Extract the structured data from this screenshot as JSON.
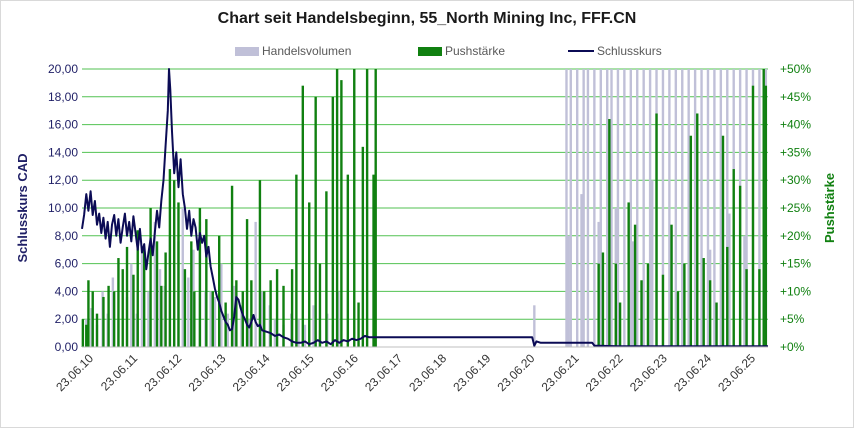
{
  "chart_data": {
    "type": "bar+line",
    "title": "Chart seit Handelsbeginn, 55_North Mining Inc, FFF.CN",
    "ylabel_left": "Schlusskurs CAD",
    "ylabel_right": "Pushstärke",
    "ylim_left": [
      0,
      20
    ],
    "ylim_right": [
      0,
      50
    ],
    "yticks_left": [
      "0,00",
      "2,00",
      "4,00",
      "6,00",
      "8,00",
      "10,00",
      "12,00",
      "14,00",
      "16,00",
      "18,00",
      "20,00"
    ],
    "yticks_right": [
      "+0%",
      "+5%",
      "+10%",
      "+15%",
      "+20%",
      "+25%",
      "+30%",
      "+35%",
      "+40%",
      "+45%",
      "+50%"
    ],
    "xticks": [
      "23.06.10",
      "23.06.11",
      "23.06.12",
      "23.06.13",
      "23.06.14",
      "23.06.15",
      "23.06.16",
      "23.06.17",
      "23.06.18",
      "23.06.19",
      "23.06.20",
      "23.06.21",
      "23.06.22",
      "23.06.23",
      "23.06.24",
      "23.06.25"
    ],
    "grid": true,
    "legend_position": "top",
    "series": [
      {
        "name": "Handelsvolumen",
        "kind": "bar",
        "axis": "none",
        "color": "#c0c0d8",
        "points": [
          [
            0.1,
            10
          ],
          [
            0.22,
            14
          ],
          [
            0.35,
            8
          ],
          [
            0.48,
            20
          ],
          [
            0.6,
            12
          ],
          [
            0.72,
            25
          ],
          [
            0.85,
            10
          ],
          [
            1.05,
            18
          ],
          [
            1.15,
            30
          ],
          [
            1.28,
            12
          ],
          [
            1.4,
            35
          ],
          [
            1.55,
            20
          ],
          [
            1.7,
            45
          ],
          [
            1.82,
            28
          ],
          [
            1.93,
            22
          ],
          [
            2.05,
            40
          ],
          [
            2.15,
            60
          ],
          [
            2.25,
            38
          ],
          [
            2.35,
            50
          ],
          [
            2.48,
            25
          ],
          [
            2.6,
            35
          ],
          [
            2.75,
            45
          ],
          [
            2.88,
            20
          ],
          [
            3.0,
            20
          ],
          [
            3.1,
            18
          ],
          [
            3.25,
            30
          ],
          [
            3.4,
            12
          ],
          [
            3.55,
            22
          ],
          [
            3.72,
            15
          ],
          [
            3.9,
            10
          ],
          [
            4.05,
            45
          ],
          [
            4.2,
            20
          ],
          [
            4.38,
            15
          ],
          [
            4.5,
            10
          ],
          [
            4.7,
            8
          ],
          [
            4.88,
            12
          ],
          [
            5.05,
            10
          ],
          [
            5.2,
            8
          ],
          [
            5.4,
            15
          ],
          [
            5.55,
            6
          ],
          [
            5.72,
            12
          ],
          [
            5.85,
            8
          ],
          [
            5.98,
            20
          ],
          [
            10.55,
            15
          ],
          [
            11.3,
            100
          ],
          [
            11.4,
            100
          ],
          [
            11.55,
            100
          ],
          [
            11.7,
            100
          ],
          [
            11.8,
            100
          ],
          [
            11.95,
            100
          ],
          [
            12.1,
            100
          ],
          [
            12.25,
            100
          ],
          [
            12.35,
            100
          ],
          [
            12.5,
            100
          ],
          [
            12.65,
            100
          ],
          [
            12.8,
            100
          ],
          [
            12.95,
            100
          ],
          [
            13.1,
            100
          ],
          [
            13.25,
            100
          ],
          [
            13.4,
            100
          ],
          [
            13.55,
            100
          ],
          [
            13.7,
            100
          ],
          [
            13.85,
            100
          ],
          [
            14.0,
            100
          ],
          [
            14.15,
            100
          ],
          [
            14.3,
            100
          ],
          [
            14.45,
            100
          ],
          [
            14.6,
            100
          ],
          [
            14.75,
            100
          ],
          [
            14.9,
            100
          ],
          [
            15.05,
            100
          ],
          [
            15.2,
            100
          ],
          [
            15.35,
            100
          ],
          [
            15.5,
            100
          ],
          [
            15.65,
            100
          ],
          [
            15.8,
            100
          ],
          [
            15.95,
            100
          ],
          [
            11.35,
            40
          ],
          [
            11.65,
            55
          ],
          [
            12.05,
            45
          ],
          [
            12.45,
            50
          ],
          [
            12.85,
            38
          ],
          [
            13.3,
            60
          ],
          [
            13.75,
            42
          ],
          [
            14.2,
            55
          ],
          [
            14.65,
            35
          ],
          [
            15.1,
            48
          ],
          [
            15.45,
            40
          ],
          [
            15.9,
            30
          ]
        ]
      },
      {
        "name": "Pushstärke",
        "kind": "bar",
        "axis": "right",
        "color": "#108010",
        "points": [
          [
            0.02,
            5
          ],
          [
            0.1,
            4
          ],
          [
            0.15,
            12
          ],
          [
            0.25,
            10
          ],
          [
            0.35,
            6
          ],
          [
            0.5,
            9
          ],
          [
            0.62,
            11
          ],
          [
            0.75,
            10
          ],
          [
            0.85,
            16
          ],
          [
            0.95,
            14
          ],
          [
            1.05,
            18
          ],
          [
            1.2,
            13
          ],
          [
            1.3,
            21
          ],
          [
            1.45,
            18
          ],
          [
            1.6,
            25
          ],
          [
            1.75,
            19
          ],
          [
            1.85,
            11
          ],
          [
            1.95,
            17
          ],
          [
            2.05,
            32
          ],
          [
            2.15,
            30
          ],
          [
            2.25,
            26
          ],
          [
            2.4,
            14
          ],
          [
            2.55,
            19
          ],
          [
            2.62,
            10
          ],
          [
            2.75,
            25
          ],
          [
            2.9,
            23
          ],
          [
            3.05,
            10
          ],
          [
            3.2,
            20
          ],
          [
            3.35,
            8
          ],
          [
            3.5,
            29
          ],
          [
            3.6,
            12
          ],
          [
            3.75,
            10
          ],
          [
            3.85,
            23
          ],
          [
            3.95,
            12
          ],
          [
            4.15,
            30
          ],
          [
            4.25,
            10
          ],
          [
            4.4,
            12
          ],
          [
            4.55,
            14
          ],
          [
            4.7,
            11
          ],
          [
            4.9,
            14
          ],
          [
            5.0,
            31
          ],
          [
            5.15,
            47
          ],
          [
            5.3,
            26
          ],
          [
            5.45,
            45
          ],
          [
            5.55,
            15
          ],
          [
            5.7,
            28
          ],
          [
            5.85,
            45
          ],
          [
            5.95,
            52
          ],
          [
            6.05,
            48
          ],
          [
            6.2,
            31
          ],
          [
            6.35,
            52
          ],
          [
            6.45,
            8
          ],
          [
            6.55,
            36
          ],
          [
            6.65,
            50
          ],
          [
            6.8,
            31
          ],
          [
            6.85,
            50
          ],
          [
            12.05,
            15
          ],
          [
            12.15,
            17
          ],
          [
            12.3,
            41
          ],
          [
            12.45,
            15
          ],
          [
            12.55,
            8
          ],
          [
            12.75,
            26
          ],
          [
            12.9,
            22
          ],
          [
            13.05,
            12
          ],
          [
            13.2,
            15
          ],
          [
            13.4,
            42
          ],
          [
            13.55,
            13
          ],
          [
            13.75,
            22
          ],
          [
            13.9,
            10
          ],
          [
            14.05,
            15
          ],
          [
            14.2,
            38
          ],
          [
            14.35,
            42
          ],
          [
            14.5,
            16
          ],
          [
            14.65,
            12
          ],
          [
            14.8,
            8
          ],
          [
            14.95,
            38
          ],
          [
            15.05,
            18
          ],
          [
            15.2,
            32
          ],
          [
            15.35,
            29
          ],
          [
            15.5,
            14
          ],
          [
            15.65,
            47
          ],
          [
            15.8,
            14
          ],
          [
            15.9,
            50
          ],
          [
            15.95,
            47
          ]
        ]
      },
      {
        "name": "Schlusskurs",
        "kind": "line",
        "axis": "left",
        "color": "#0b0b55",
        "points": [
          [
            0.0,
            8.5
          ],
          [
            0.05,
            9.5
          ],
          [
            0.1,
            11.0
          ],
          [
            0.15,
            9.8
          ],
          [
            0.2,
            11.2
          ],
          [
            0.25,
            9.5
          ],
          [
            0.3,
            10.5
          ],
          [
            0.35,
            8.8
          ],
          [
            0.4,
            9.6
          ],
          [
            0.45,
            8.2
          ],
          [
            0.5,
            9.3
          ],
          [
            0.55,
            7.8
          ],
          [
            0.6,
            9.0
          ],
          [
            0.65,
            7.2
          ],
          [
            0.7,
            8.8
          ],
          [
            0.75,
            9.5
          ],
          [
            0.8,
            8.0
          ],
          [
            0.85,
            9.2
          ],
          [
            0.9,
            7.5
          ],
          [
            0.95,
            8.6
          ],
          [
            1.0,
            9.6
          ],
          [
            1.05,
            8.0
          ],
          [
            1.1,
            9.0
          ],
          [
            1.15,
            7.6
          ],
          [
            1.2,
            9.4
          ],
          [
            1.25,
            8.2
          ],
          [
            1.3,
            7.0
          ],
          [
            1.35,
            8.5
          ],
          [
            1.4,
            6.8
          ],
          [
            1.45,
            7.4
          ],
          [
            1.5,
            5.6
          ],
          [
            1.55,
            6.8
          ],
          [
            1.6,
            7.8
          ],
          [
            1.65,
            6.6
          ],
          [
            1.7,
            8.3
          ],
          [
            1.75,
            9.8
          ],
          [
            1.8,
            8.6
          ],
          [
            1.85,
            10.5
          ],
          [
            1.9,
            12.0
          ],
          [
            1.95,
            14.5
          ],
          [
            2.0,
            17.0
          ],
          [
            2.03,
            20.0
          ],
          [
            2.06,
            18.5
          ],
          [
            2.1,
            15.5
          ],
          [
            2.15,
            12.5
          ],
          [
            2.2,
            14.0
          ],
          [
            2.25,
            11.5
          ],
          [
            2.3,
            13.5
          ],
          [
            2.35,
            11.0
          ],
          [
            2.4,
            10.0
          ],
          [
            2.45,
            8.5
          ],
          [
            2.5,
            9.8
          ],
          [
            2.55,
            8.0
          ],
          [
            2.6,
            9.2
          ],
          [
            2.65,
            8.6
          ],
          [
            2.7,
            7.0
          ],
          [
            2.75,
            8.2
          ],
          [
            2.8,
            7.5
          ],
          [
            2.85,
            8.0
          ],
          [
            2.9,
            6.5
          ],
          [
            2.95,
            7.2
          ],
          [
            3.0,
            5.8
          ],
          [
            3.05,
            5.0
          ],
          [
            3.1,
            4.2
          ],
          [
            3.15,
            3.6
          ],
          [
            3.2,
            3.2
          ],
          [
            3.25,
            2.6
          ],
          [
            3.3,
            2.2
          ],
          [
            3.35,
            1.8
          ],
          [
            3.4,
            1.6
          ],
          [
            3.45,
            1.2
          ],
          [
            3.5,
            1.3
          ],
          [
            3.55,
            2.2
          ],
          [
            3.6,
            3.6
          ],
          [
            3.65,
            3.4
          ],
          [
            3.7,
            2.8
          ],
          [
            3.75,
            2.3
          ],
          [
            3.8,
            2.0
          ],
          [
            3.85,
            1.6
          ],
          [
            3.9,
            1.4
          ],
          [
            3.95,
            1.8
          ],
          [
            4.0,
            2.3
          ],
          [
            4.05,
            1.8
          ],
          [
            4.1,
            1.5
          ],
          [
            4.15,
            1.6
          ],
          [
            4.2,
            1.2
          ],
          [
            4.3,
            1.1
          ],
          [
            4.4,
            1.0
          ],
          [
            4.5,
            0.8
          ],
          [
            4.6,
            0.9
          ],
          [
            4.7,
            0.7
          ],
          [
            4.8,
            0.6
          ],
          [
            4.9,
            0.4
          ],
          [
            5.0,
            0.3
          ],
          [
            5.1,
            0.3
          ],
          [
            5.2,
            0.4
          ],
          [
            5.3,
            0.2
          ],
          [
            5.4,
            0.3
          ],
          [
            5.5,
            0.5
          ],
          [
            5.6,
            0.3
          ],
          [
            5.7,
            0.4
          ],
          [
            5.8,
            0.2
          ],
          [
            5.9,
            0.5
          ],
          [
            6.0,
            0.3
          ],
          [
            6.1,
            0.5
          ],
          [
            6.2,
            0.4
          ],
          [
            6.3,
            0.6
          ],
          [
            6.4,
            0.5
          ],
          [
            6.5,
            0.6
          ],
          [
            6.55,
            0.7
          ],
          [
            6.6,
            0.8
          ],
          [
            6.7,
            0.7
          ],
          [
            6.8,
            0.7
          ],
          [
            7.5,
            0.7
          ],
          [
            8.5,
            0.7
          ],
          [
            9.5,
            0.7
          ],
          [
            10.5,
            0.7
          ],
          [
            10.55,
            0.1
          ],
          [
            10.6,
            0.4
          ],
          [
            10.7,
            0.3
          ],
          [
            11.5,
            0.3
          ],
          [
            11.9,
            0.3
          ],
          [
            11.95,
            0.1
          ],
          [
            12.5,
            0.05
          ],
          [
            13.5,
            0.05
          ],
          [
            14.5,
            0.05
          ],
          [
            15.5,
            0.05
          ],
          [
            16.0,
            0.05
          ]
        ]
      }
    ]
  },
  "colors": {
    "grid": "#52c252",
    "left_axis": "#1f1f66",
    "right_axis": "#108010"
  }
}
